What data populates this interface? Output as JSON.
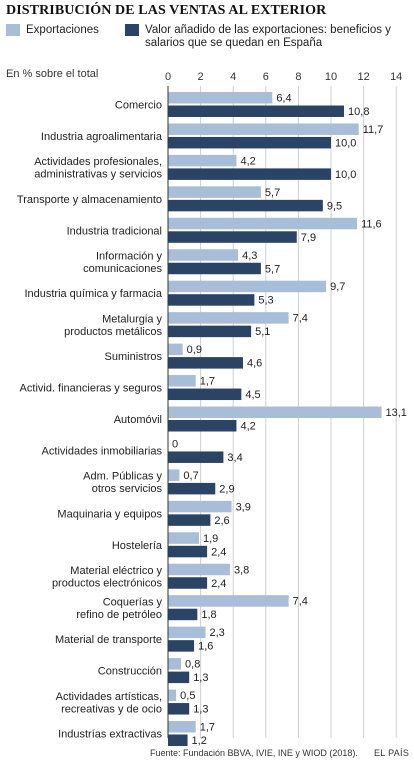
{
  "title": "DISTRIBUCIÓN DE LAS VENTAS AL EXTERIOR",
  "legend": [
    {
      "label": "Exportaciones",
      "color": "#a8bdd8"
    },
    {
      "label": "Valor añadido de las exportaciones: beneficios y salarios que se quedan en España",
      "color": "#2b4466"
    }
  ],
  "unit_label": "En % sobre el total",
  "source": "Fuente: Fundación BBVA, IVIE, INE y WIOD (2018).",
  "brand": "EL PAÍS",
  "chart_data": {
    "type": "bar",
    "orientation": "horizontal",
    "xlim": [
      0,
      14
    ],
    "ticks": [
      "0",
      "2",
      "4",
      "6",
      "8",
      "10",
      "12",
      "14"
    ],
    "grid": true,
    "legend_position": "top",
    "categories": [
      [
        "Comercio"
      ],
      [
        "Industria agroalimentaria"
      ],
      [
        "Actividades profesionales,",
        "administrativas y servicios"
      ],
      [
        "Transporte y almacenamiento"
      ],
      [
        "Industria tradicional"
      ],
      [
        "Información y",
        "comunicaciones"
      ],
      [
        "Industria química y farmacia"
      ],
      [
        "Metalurgia y",
        "productos metálicos"
      ],
      [
        "Suministros"
      ],
      [
        "Activid. financieras y seguros"
      ],
      [
        "Automóvil"
      ],
      [
        "Actividades inmobiliarias"
      ],
      [
        "Adm. Públicas y",
        "otros servicios"
      ],
      [
        "Maquinaria y equipos"
      ],
      [
        "Hostelería"
      ],
      [
        "Material eléctrico y",
        "productos electrónicos"
      ],
      [
        "Coquerías y",
        "refino de petróleo"
      ],
      [
        "Material de transporte"
      ],
      [
        "Construcción"
      ],
      [
        "Actividades artísticas,",
        "recreativas y de ocio"
      ],
      [
        "Industrías extractivas"
      ]
    ],
    "series": [
      {
        "name": "Exportaciones",
        "color": "#a8bdd8",
        "values": [
          6.4,
          11.7,
          4.2,
          5.7,
          11.6,
          4.3,
          9.7,
          7.4,
          0.9,
          1.7,
          13.1,
          0,
          0.7,
          3.9,
          1.9,
          3.8,
          7.4,
          2.3,
          0.8,
          0.5,
          1.7
        ],
        "labels": [
          "6,4",
          "11,7",
          "4,2",
          "5,7",
          "11,6",
          "4,3",
          "9,7",
          "7,4",
          "0,9",
          "1,7",
          "13,1",
          "0",
          "0,7",
          "3,9",
          "1,9",
          "3,8",
          "7,4",
          "2,3",
          "0,8",
          "0,5",
          "1,7"
        ]
      },
      {
        "name": "Valor añadido de las exportaciones: beneficios y salarios que se quedan en España",
        "color": "#2b4466",
        "values": [
          10.8,
          10.0,
          10.0,
          9.5,
          7.9,
          5.7,
          5.3,
          5.1,
          4.6,
          4.5,
          4.2,
          3.4,
          2.9,
          2.6,
          2.4,
          2.4,
          1.8,
          1.6,
          1.3,
          1.3,
          1.2
        ],
        "labels": [
          "10,8",
          "10,0",
          "10,0",
          "9,5",
          "7,9",
          "5,7",
          "5,3",
          "5,1",
          "4,6",
          "4,5",
          "4,2",
          "3,4",
          "2,9",
          "2,6",
          "2,4",
          "2,4",
          "1,8",
          "1,6",
          "1,3",
          "1,3",
          "1,2"
        ]
      }
    ]
  }
}
